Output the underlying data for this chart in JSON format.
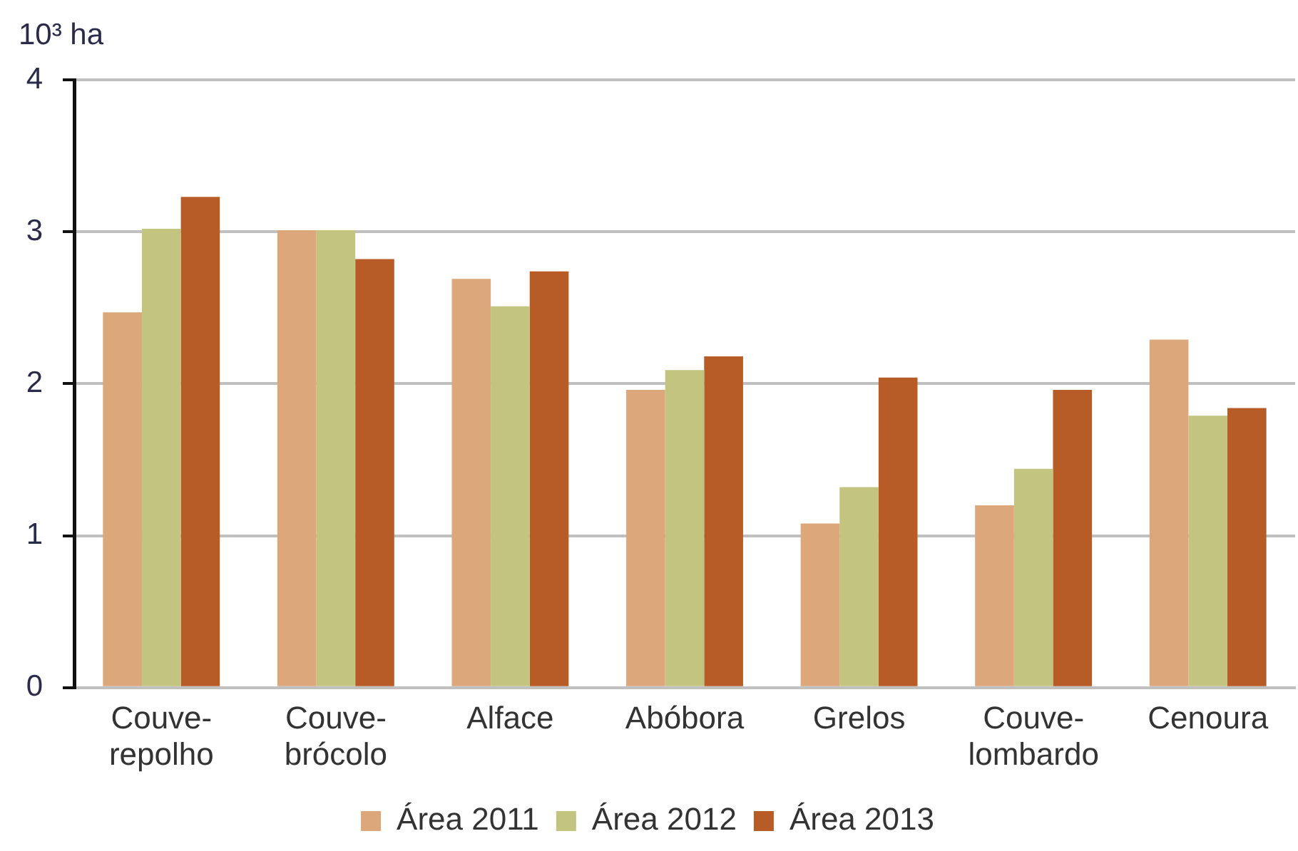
{
  "chart_data": {
    "type": "bar",
    "ylabel": "10³ ha",
    "categories": [
      "Couve-repolho",
      "Couve-brócolo",
      "Alface",
      "Abóbora",
      "Grelos",
      "Couve-lombardo",
      "Cenoura"
    ],
    "series": [
      {
        "name": "Área 2011",
        "color": "#dba77b",
        "values": [
          2.47,
          3.01,
          2.69,
          1.96,
          1.08,
          1.2,
          2.29
        ]
      },
      {
        "name": "Área 2012",
        "color": "#c2c47f",
        "values": [
          3.02,
          3.01,
          2.51,
          2.09,
          1.32,
          1.44,
          1.79
        ]
      },
      {
        "name": "Área 2013",
        "color": "#b85c27",
        "values": [
          3.23,
          2.82,
          2.74,
          2.18,
          2.04,
          1.96,
          1.84
        ]
      }
    ],
    "ylim": [
      0,
      4
    ],
    "yticks": [
      0,
      1,
      2,
      3,
      4
    ],
    "grid": "y",
    "legend": "bottom"
  }
}
